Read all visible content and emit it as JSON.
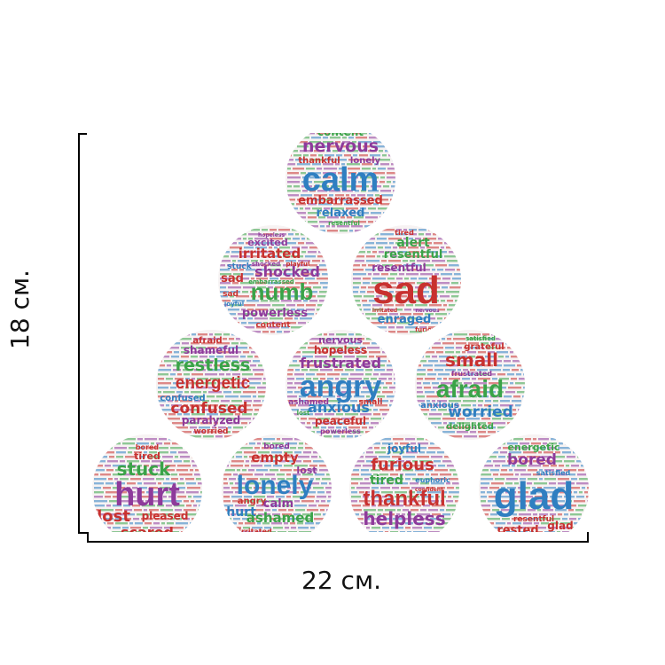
{
  "dimensions": {
    "width_label": "22 см.",
    "height_label": "18 см."
  },
  "colors": {
    "blue": "#2f7fc1",
    "red": "#c8312f",
    "green": "#3aa348",
    "purple": "#8e3a9b",
    "sticker_bg": "#f7f3f3"
  },
  "stickers": [
    {
      "main": "calm",
      "main_color": "#2f7fc1",
      "words": [
        {
          "text": "content",
          "color": "#3aa348"
        },
        {
          "text": "nervous",
          "color": "#8e3a9b"
        },
        {
          "text": "thankful",
          "color": "#c8312f"
        },
        {
          "text": "lonely",
          "color": "#8e3a9b"
        },
        {
          "text": "embarrassed",
          "color": "#c8312f"
        },
        {
          "text": "relaxed",
          "color": "#2f7fc1"
        },
        {
          "text": "resentful",
          "color": "#3aa348"
        }
      ]
    },
    {
      "main": "numb",
      "main_color": "#3aa348",
      "words": [
        {
          "text": "hopeless",
          "color": "#8e3a9b"
        },
        {
          "text": "excited",
          "color": "#8e3a9b"
        },
        {
          "text": "irritated",
          "color": "#c8312f"
        },
        {
          "text": "stuck",
          "color": "#2f7fc1"
        },
        {
          "text": "shocked",
          "color": "#8e3a9b"
        },
        {
          "text": "playful",
          "color": "#c8312f"
        },
        {
          "text": "shocked",
          "color": "#8e3a9b"
        },
        {
          "text": "sad",
          "color": "#c8312f"
        },
        {
          "text": "embarrassed",
          "color": "#3aa348"
        },
        {
          "text": "sad",
          "color": "#c8312f"
        },
        {
          "text": "joyful",
          "color": "#2f7fc1"
        },
        {
          "text": "powerless",
          "color": "#8e3a9b"
        },
        {
          "text": "content",
          "color": "#c8312f"
        }
      ]
    },
    {
      "main": "sad",
      "main_color": "#c8312f",
      "words": [
        {
          "text": "tired",
          "color": "#c8312f"
        },
        {
          "text": "alert",
          "color": "#3aa348"
        },
        {
          "text": "resentful",
          "color": "#3aa348"
        },
        {
          "text": "resentful",
          "color": "#8e3a9b"
        },
        {
          "text": "irritated",
          "color": "#c8312f"
        },
        {
          "text": "nervous",
          "color": "#8e3a9b"
        },
        {
          "text": "enraged",
          "color": "#2f7fc1"
        },
        {
          "text": "furious",
          "color": "#c8312f"
        }
      ]
    },
    {
      "main": "energetic",
      "main_color": "#c8312f",
      "words": [
        {
          "text": "afraid",
          "color": "#c8312f"
        },
        {
          "text": "shameful",
          "color": "#8e3a9b"
        },
        {
          "text": "restless",
          "color": "#3aa348"
        },
        {
          "text": "confused",
          "color": "#2f7fc1"
        },
        {
          "text": "confused",
          "color": "#c8312f"
        },
        {
          "text": "paralyzed",
          "color": "#8e3a9b"
        },
        {
          "text": "worried",
          "color": "#c8312f"
        }
      ]
    },
    {
      "main": "angry",
      "main_color": "#2f7fc1",
      "words": [
        {
          "text": "nervous",
          "color": "#8e3a9b"
        },
        {
          "text": "hopeless",
          "color": "#c8312f"
        },
        {
          "text": "frustrated",
          "color": "#8e3a9b"
        },
        {
          "text": "anxious",
          "color": "#2f7fc1"
        },
        {
          "text": "ashamed",
          "color": "#8e3a9b"
        },
        {
          "text": "small",
          "color": "#c8312f"
        },
        {
          "text": "lost",
          "color": "#3aa348"
        },
        {
          "text": "peaceful",
          "color": "#c8312f"
        },
        {
          "text": "powerless",
          "color": "#8e3a9b"
        }
      ]
    },
    {
      "main": "afraid",
      "main_color": "#3aa348",
      "words": [
        {
          "text": "satisfied",
          "color": "#3aa348"
        },
        {
          "text": "grateful",
          "color": "#c8312f"
        },
        {
          "text": "small",
          "color": "#c8312f"
        },
        {
          "text": "frustrated",
          "color": "#8e3a9b"
        },
        {
          "text": "anxious",
          "color": "#2f7fc1"
        },
        {
          "text": "worried",
          "color": "#2f7fc1"
        },
        {
          "text": "delighted",
          "color": "#3aa348"
        }
      ]
    },
    {
      "main": "hurt",
      "main_color": "#8e3a9b",
      "words": [
        {
          "text": "bored",
          "color": "#c8312f"
        },
        {
          "text": "tired",
          "color": "#c8312f"
        },
        {
          "text": "stuck",
          "color": "#3aa348"
        },
        {
          "text": "lost",
          "color": "#c8312f"
        },
        {
          "text": "pleased",
          "color": "#c8312f"
        },
        {
          "text": "scared",
          "color": "#c8312f"
        }
      ]
    },
    {
      "main": "lonely",
      "main_color": "#2f7fc1",
      "words": [
        {
          "text": "bored",
          "color": "#8e3a9b"
        },
        {
          "text": "empty",
          "color": "#c8312f"
        },
        {
          "text": "lost",
          "color": "#8e3a9b"
        },
        {
          "text": "angry",
          "color": "#c8312f"
        },
        {
          "text": "calm",
          "color": "#8e3a9b"
        },
        {
          "text": "hurt",
          "color": "#2f7fc1"
        },
        {
          "text": "ashamed",
          "color": "#3aa348"
        },
        {
          "text": "irritated",
          "color": "#c8312f"
        }
      ]
    },
    {
      "main": "thankful",
      "main_color": "#c8312f",
      "words": [
        {
          "text": "joyful",
          "color": "#2f7fc1"
        },
        {
          "text": "furious",
          "color": "#c8312f"
        },
        {
          "text": "tired",
          "color": "#3aa348"
        },
        {
          "text": "euphoric",
          "color": "#2f7fc1"
        },
        {
          "text": "confident",
          "color": "#c8312f"
        },
        {
          "text": "helpless",
          "color": "#8e3a9b"
        }
      ]
    },
    {
      "main": "glad",
      "main_color": "#2f7fc1",
      "words": [
        {
          "text": "energetic",
          "color": "#3aa348"
        },
        {
          "text": "bored",
          "color": "#8e3a9b"
        },
        {
          "text": "satisfied",
          "color": "#2f7fc1"
        },
        {
          "text": "resentful",
          "color": "#c8312f"
        },
        {
          "text": "glad",
          "color": "#c8312f"
        },
        {
          "text": "rested",
          "color": "#c8312f"
        }
      ]
    }
  ]
}
